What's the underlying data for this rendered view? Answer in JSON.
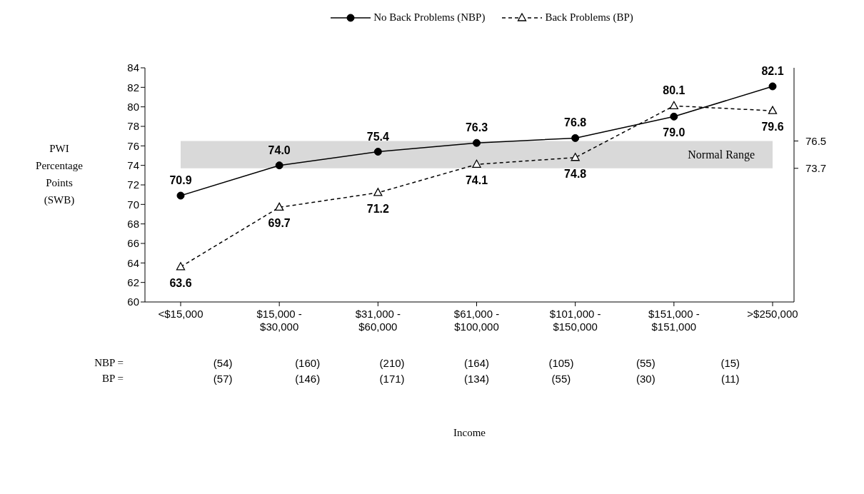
{
  "chart_data": {
    "type": "line",
    "ylabel": "PWI\nPercentage\nPoints\n(SWB)",
    "categories": [
      "<$15,000",
      "$15,000 - $30,000",
      "$31,000 - $60,000",
      "$61,000 - $100,000",
      "$101,000 - $150,000",
      "$151,000 - $151,000",
      ">$250,000"
    ],
    "series": [
      {
        "name": "No Back Problems (NBP)",
        "color": "#000000",
        "values": [
          70.9,
          74.0,
          75.4,
          76.3,
          76.8,
          79.0,
          82.1
        ],
        "value_labels": [
          "70.9",
          "74.0",
          "75.4",
          "76.3",
          "76.8",
          "79.0",
          "82.1"
        ],
        "marker": "circle",
        "line_style": "solid"
      },
      {
        "name": "Back Problems (BP)",
        "color": "#000000",
        "values": [
          63.6,
          69.7,
          71.2,
          74.1,
          74.8,
          80.1,
          79.6
        ],
        "value_labels": [
          "63.6",
          "69.7",
          "71.2",
          "74.1",
          "74.8",
          "80.1",
          "79.6"
        ],
        "marker": "triangle",
        "line_style": "dashed"
      }
    ],
    "ylim": [
      60,
      84
    ],
    "yticks": [
      60,
      62,
      64,
      66,
      68,
      70,
      72,
      74,
      76,
      78,
      80,
      82,
      84
    ],
    "bands": [
      {
        "axis": "y",
        "from": 73.7,
        "to": 76.5,
        "label": "Normal Range",
        "color": "#d9d9d9"
      }
    ],
    "legend": "top",
    "grid": false,
    "y2lim": [
      60,
      84
    ],
    "y2ticks": [
      73.7,
      76.5
    ],
    "annotations": [
      "NBP =",
      "(54)",
      "(160)",
      "(210)",
      "(164)",
      "(105)",
      "(55)",
      "(15)",
      "BP =",
      "(57)",
      "(146)",
      "(171)",
      "(134)",
      "(55)",
      "(30)",
      "(11)",
      "Income"
    ]
  }
}
